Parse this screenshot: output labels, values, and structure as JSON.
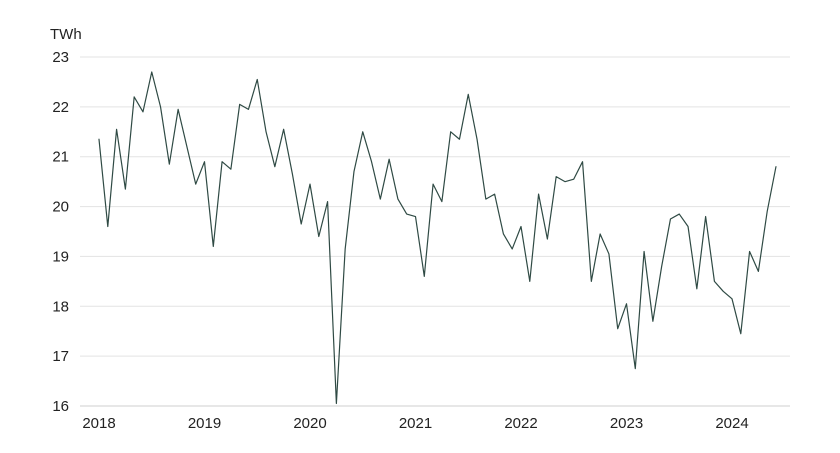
{
  "chart_data": {
    "type": "line",
    "title": "",
    "xlabel": "",
    "ylabel": "TWh",
    "x_start": "2018-01",
    "x_frequency": "monthly",
    "xticks": [
      "2018",
      "2019",
      "2020",
      "2021",
      "2022",
      "2023",
      "2024"
    ],
    "yticks": [
      16,
      17,
      18,
      19,
      20,
      21,
      22,
      23
    ],
    "ylim": [
      16,
      23
    ],
    "grid": true,
    "legend": "none",
    "colors": {
      "line": "#2f4a44",
      "grid": "#e3e3e3",
      "text": "#222222"
    },
    "series": [
      {
        "values": [
          21.35,
          19.6,
          21.55,
          20.35,
          22.2,
          21.9,
          22.7,
          22.0,
          20.85,
          21.95,
          21.2,
          20.45,
          20.9,
          19.2,
          20.9,
          20.75,
          22.05,
          21.95,
          22.55,
          21.5,
          20.8,
          21.55,
          20.65,
          19.65,
          20.45,
          19.4,
          20.1,
          16.05,
          19.15,
          20.7,
          21.5,
          20.9,
          20.15,
          20.95,
          20.15,
          19.85,
          19.8,
          18.6,
          20.45,
          20.1,
          21.5,
          21.35,
          22.25,
          21.35,
          20.15,
          20.25,
          19.45,
          19.15,
          19.6,
          18.5,
          20.25,
          19.35,
          20.6,
          20.5,
          20.55,
          20.9,
          18.5,
          19.45,
          19.05,
          17.55,
          18.05,
          16.75,
          19.1,
          17.7,
          18.8,
          19.75,
          19.85,
          19.6,
          18.35,
          19.8,
          18.5,
          18.3,
          18.15,
          17.45,
          19.1,
          18.7,
          19.9,
          20.8
        ]
      }
    ]
  }
}
